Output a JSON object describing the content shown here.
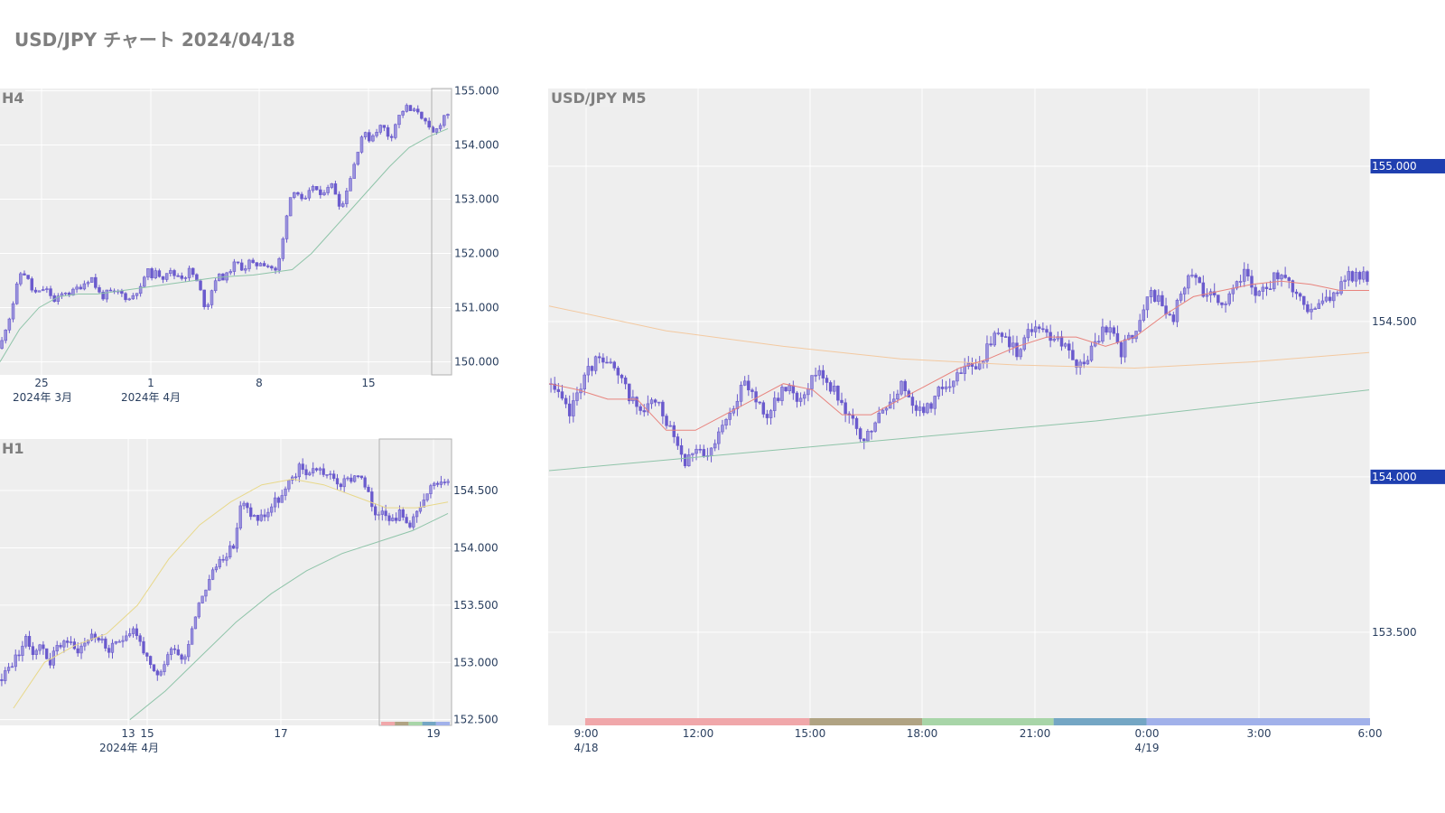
{
  "page": {
    "title": "USD/JPY チャート 2024/04/18"
  },
  "colors": {
    "plot_bg": "#eeeeee",
    "grid": "#ffffff",
    "candle": "#6a5acd",
    "candle_fill": "#9b94dc",
    "sma_short": "#e8837d",
    "sma_mid": "#f3c9a0",
    "sma_long": "#8fc4a9",
    "sma_h1_yellow": "#e8d88a",
    "highlight_box": "#b0b0b0",
    "price_tag_bg": "#1f3fb0",
    "sessions": [
      "#f0a7aa",
      "#b0a383",
      "#a8d5a8",
      "#74a6c4",
      "#a1b1ea"
    ]
  },
  "chart_data": [
    {
      "type": "candlestick",
      "title": "H4",
      "y_ticks": [
        "150.000",
        "151.000",
        "152.000",
        "153.000",
        "154.000",
        "155.000"
      ],
      "ylim": [
        149.76,
        155.04
      ],
      "x_ticks": [
        "25",
        "1",
        "8",
        "15"
      ],
      "x_sublabels": [
        "2024年 3月",
        "2024年 4月"
      ],
      "x_domain_days": [
        "2024-03-21",
        "2024-04-19"
      ],
      "ohlc_path": [
        150.25,
        150.62,
        150.9,
        151.35,
        151.7,
        151.55,
        151.3,
        151.25,
        151.35,
        151.3,
        151.1,
        151.2,
        151.3,
        151.25,
        151.35,
        151.4,
        151.5,
        151.55,
        151.3,
        151.2,
        151.3,
        151.25,
        151.3,
        151.2,
        151.15,
        151.3,
        151.35,
        151.7,
        151.6,
        151.65,
        151.55,
        151.7,
        151.6,
        151.6,
        151.55,
        151.7,
        151.55,
        151.3,
        150.95,
        151.3,
        151.6,
        151.55,
        151.6,
        151.8,
        151.8,
        151.7,
        151.85,
        151.75,
        151.85,
        151.8,
        151.75,
        151.65,
        152.1,
        152.8,
        153.2,
        153.1,
        152.9,
        153.1,
        153.3,
        153.0,
        153.2,
        153.3,
        153.1,
        152.8,
        153.2,
        153.5,
        153.9,
        154.25,
        154.1,
        154.2,
        154.35,
        154.3,
        154.1,
        154.4,
        154.6,
        154.7,
        154.6,
        154.65,
        154.5,
        154.3,
        154.2,
        154.35,
        154.55,
        154.6
      ],
      "sma": [
        150.0,
        150.6,
        151.0,
        151.2,
        151.25,
        151.25,
        151.3,
        151.35,
        151.4,
        151.45,
        151.5,
        151.55,
        151.58,
        151.6,
        151.65,
        151.7,
        152.0,
        152.4,
        152.8,
        153.2,
        153.6,
        153.95,
        154.15,
        154.3
      ],
      "highlight_range_days": [
        28.2,
        28.9
      ]
    },
    {
      "type": "candlestick",
      "title": "H1",
      "y_ticks": [
        "152.500",
        "153.000",
        "153.500",
        "154.000",
        "154.500"
      ],
      "ylim": [
        152.45,
        154.95
      ],
      "x_ticks": [
        "13",
        "15",
        "17",
        "19"
      ],
      "x_sublabels": [
        "2024年 4月"
      ],
      "ohlc_path": [
        152.85,
        152.95,
        153.05,
        153.2,
        153.1,
        153.15,
        153.0,
        153.15,
        153.2,
        153.1,
        153.15,
        153.25,
        153.2,
        153.1,
        153.15,
        153.25,
        153.3,
        153.15,
        152.95,
        152.85,
        153.05,
        153.15,
        153.0,
        153.3,
        153.55,
        153.7,
        153.85,
        153.95,
        154.0,
        154.4,
        154.3,
        154.25,
        154.3,
        154.4,
        154.45,
        154.6,
        154.7,
        154.65,
        154.7,
        154.65,
        154.6,
        154.55,
        154.6,
        154.65,
        154.5,
        154.3,
        154.35,
        154.25,
        154.3,
        154.2,
        154.3,
        154.4,
        154.55,
        154.6,
        154.62
      ],
      "sma_mid": [
        152.6,
        153.0,
        153.15,
        153.25,
        153.5,
        153.9,
        154.2,
        154.4,
        154.55,
        154.6,
        154.55,
        154.45,
        154.35,
        154.35,
        154.4
      ],
      "sma_long": [
        152.5,
        152.75,
        153.05,
        153.35,
        153.6,
        153.8,
        153.95,
        154.05,
        154.15,
        154.3
      ],
      "highlight_range": [
        0.84,
        1.0
      ]
    },
    {
      "type": "candlestick",
      "title": "USD/JPY M5",
      "y_ticks": [
        "153.500",
        "154.500"
      ],
      "price_tags": [
        "155.000",
        "154.000"
      ],
      "ylim": [
        153.2,
        155.25
      ],
      "x_ticks": [
        "9:00",
        "12:00",
        "15:00",
        "18:00",
        "21:00",
        "0:00",
        "3:00",
        "6:00"
      ],
      "x_sublabels": [
        "4/18",
        "4/19"
      ],
      "ohlc_path": [
        154.3,
        154.25,
        154.2,
        154.3,
        154.35,
        154.4,
        154.35,
        154.3,
        154.25,
        154.2,
        154.25,
        154.2,
        154.15,
        154.05,
        154.1,
        154.05,
        154.1,
        154.2,
        154.25,
        154.3,
        154.25,
        154.2,
        154.25,
        154.3,
        154.25,
        154.3,
        154.35,
        154.3,
        154.25,
        154.2,
        154.1,
        154.15,
        154.2,
        154.25,
        154.3,
        154.25,
        154.2,
        154.25,
        154.3,
        154.3,
        154.35,
        154.35,
        154.4,
        154.45,
        154.45,
        154.4,
        154.45,
        154.5,
        154.45,
        154.45,
        154.4,
        154.35,
        154.4,
        154.45,
        154.5,
        154.4,
        154.45,
        154.5,
        154.6,
        154.55,
        154.5,
        154.6,
        154.65,
        154.6,
        154.6,
        154.55,
        154.6,
        154.65,
        154.6,
        154.6,
        154.65,
        154.62,
        154.6,
        154.55,
        154.55,
        154.58,
        154.6,
        154.65,
        154.65,
        154.63
      ],
      "sma_short": [
        154.3,
        154.28,
        154.25,
        154.25,
        154.15,
        154.15,
        154.2,
        154.25,
        154.3,
        154.28,
        154.2,
        154.2,
        154.25,
        154.3,
        154.35,
        154.38,
        154.42,
        154.45,
        154.45,
        154.42,
        154.45,
        154.52,
        154.58,
        154.6,
        154.62,
        154.63,
        154.62,
        154.6,
        154.6
      ],
      "sma_mid": [
        154.55,
        154.47,
        154.42,
        154.38,
        154.36,
        154.35,
        154.37,
        154.4
      ],
      "sma_long": [
        154.02,
        154.1,
        154.18,
        154.28
      ],
      "sessions": [
        [
          0.045,
          0.318
        ],
        [
          0.318,
          0.455
        ],
        [
          0.455,
          0.615
        ],
        [
          0.615,
          0.728
        ],
        [
          0.728,
          1.0
        ]
      ]
    }
  ]
}
